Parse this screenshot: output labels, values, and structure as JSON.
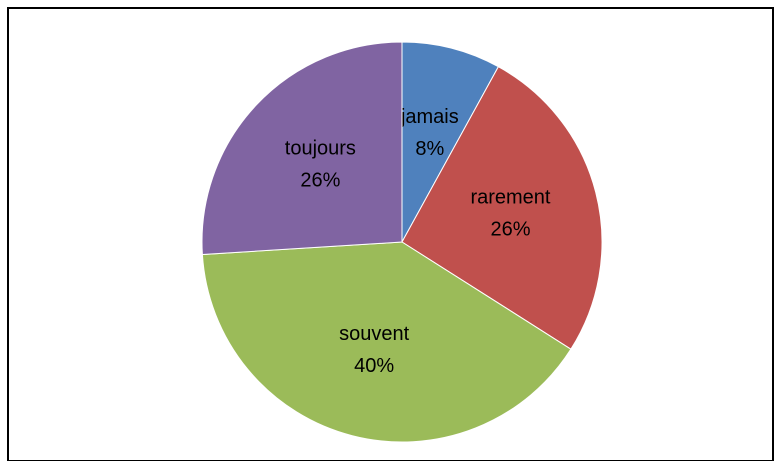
{
  "chart_data": {
    "type": "pie",
    "categories": [
      "jamais",
      "rarement",
      "souvent",
      "toujours"
    ],
    "values": [
      8,
      26,
      40,
      26
    ],
    "value_labels": [
      "8%",
      "26%",
      "40%",
      "26%"
    ],
    "colors": [
      "#4f81bd",
      "#c0504d",
      "#9bbb59",
      "#8064a2"
    ]
  }
}
